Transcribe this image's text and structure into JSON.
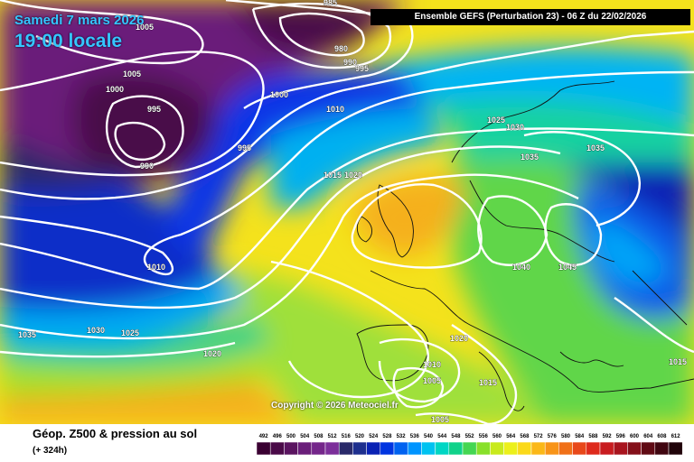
{
  "header": {
    "date": "Samedi 7 mars 2026",
    "local_time": "19:00 locale",
    "run_info": "Ensemble GEFS  (Perturbation 23)  -  06 Z du 22/02/2026"
  },
  "copyright": "Copyright © 2026 Meteociel.fr",
  "footer": {
    "title": "Géop. Z500 & pression au sol",
    "subtitle": "(+ 324h)"
  },
  "legend": {
    "unit_note": "",
    "values": [
      "492",
      "496",
      "500",
      "504",
      "508",
      "512",
      "516",
      "520",
      "524",
      "528",
      "532",
      "536",
      "540",
      "544",
      "548",
      "552",
      "556",
      "560",
      "564",
      "568",
      "572",
      "576",
      "580",
      "584",
      "588",
      "592",
      "596",
      "600",
      "604",
      "608",
      "612"
    ],
    "colors": [
      "#3a0032",
      "#4a0a48",
      "#5a1460",
      "#6a1e7a",
      "#74268a",
      "#7c2f9a",
      "#2a2a6a",
      "#1e2f8e",
      "#0a22b4",
      "#0034e0",
      "#0062f0",
      "#0094ff",
      "#00c2f0",
      "#00d6c4",
      "#10d28a",
      "#44d652",
      "#88e02a",
      "#c8ea1c",
      "#ecf01a",
      "#fbd91a",
      "#fbb818",
      "#f89418",
      "#f07018",
      "#e8481a",
      "#de2a1c",
      "#c81c20",
      "#a8141e",
      "#84101a",
      "#600a14",
      "#400610",
      "#20040a"
    ]
  },
  "isobars": [
    {
      "label": "985"
    },
    {
      "label": "1005"
    },
    {
      "label": "980"
    },
    {
      "label": "990"
    },
    {
      "label": "995"
    },
    {
      "label": "1000"
    },
    {
      "label": "1005"
    },
    {
      "label": "1000"
    },
    {
      "label": "995"
    },
    {
      "label": "990"
    },
    {
      "label": "1010"
    },
    {
      "label": "995"
    },
    {
      "label": "1015"
    },
    {
      "label": "1020"
    },
    {
      "label": "1025"
    },
    {
      "label": "1030"
    },
    {
      "label": "1035"
    },
    {
      "label": "1035"
    },
    {
      "label": "1010"
    },
    {
      "label": "1040"
    },
    {
      "label": "1045"
    },
    {
      "label": "1035"
    },
    {
      "label": "1030"
    },
    {
      "label": "1025"
    },
    {
      "label": "1020"
    },
    {
      "label": "1020"
    },
    {
      "label": "1010"
    },
    {
      "label": "1005"
    },
    {
      "label": "1015"
    },
    {
      "label": "1005"
    },
    {
      "label": "1015"
    }
  ]
}
